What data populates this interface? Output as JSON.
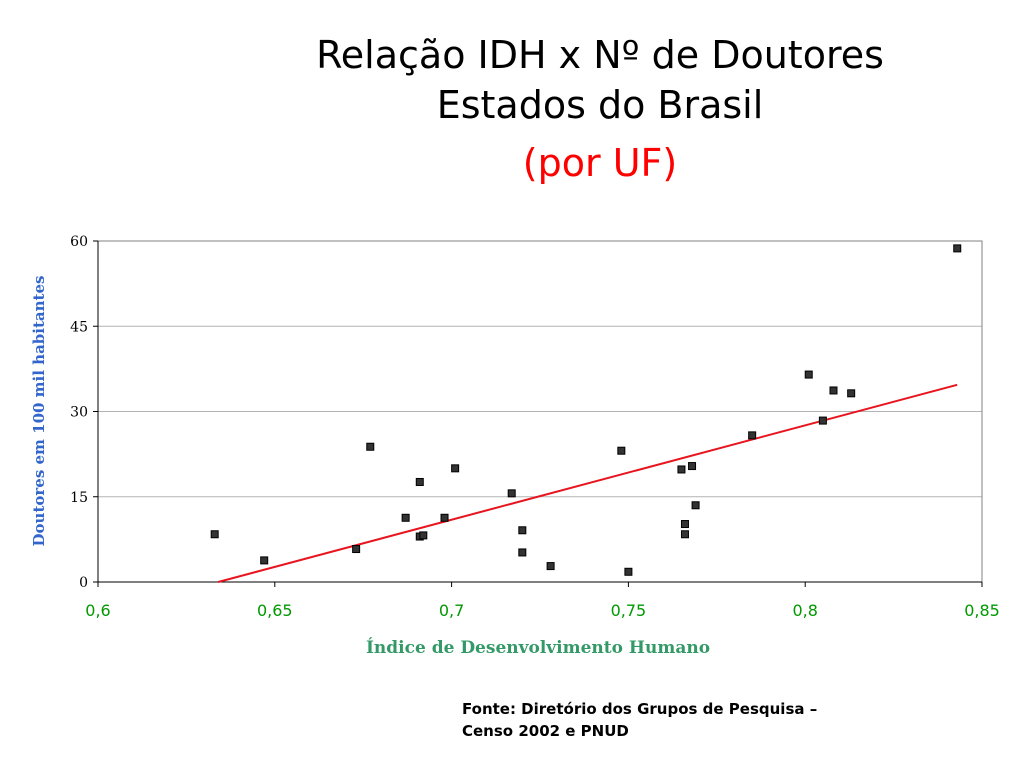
{
  "slide": {
    "title_line1": "Relação IDH x Nº de Doutores",
    "title_line2": "Estados do Brasil",
    "title_line3": "(por UF)",
    "source_line1": "Fonte: Diretório dos Grupos de Pesquisa –",
    "source_line2": "Censo 2002 e PNUD"
  },
  "colors": {
    "title": "#000000",
    "title_accent": "#ff0000",
    "trend_line": "#e8141e",
    "marker": "#333333",
    "ylabel": "#3366cc",
    "xlabel": "#339966",
    "xticks": "#009900",
    "gridline": "#b3b3b3"
  },
  "chart_data": {
    "type": "scatter",
    "title": "",
    "xlabel": "Índice de Desenvolvimento Humano",
    "ylabel": "Doutores em 100 mil habitantes",
    "xlim": [
      0.6,
      0.85
    ],
    "ylim": [
      0,
      60
    ],
    "xticks": [
      0.6,
      0.65,
      0.7,
      0.75,
      0.8,
      0.85
    ],
    "xtick_labels": [
      "0,6",
      "0,65",
      "0,7",
      "0,75",
      "0,8",
      "0,85"
    ],
    "yticks": [
      0,
      15,
      30,
      45,
      60
    ],
    "ytick_labels": [
      "0",
      "15",
      "30",
      "45",
      "60"
    ],
    "grid": "horizontal",
    "legend": "none",
    "points": [
      {
        "x": 0.633,
        "y": 8.4
      },
      {
        "x": 0.647,
        "y": 3.8
      },
      {
        "x": 0.673,
        "y": 5.8
      },
      {
        "x": 0.677,
        "y": 23.8
      },
      {
        "x": 0.687,
        "y": 11.3
      },
      {
        "x": 0.691,
        "y": 17.6
      },
      {
        "x": 0.691,
        "y": 8.0
      },
      {
        "x": 0.692,
        "y": 8.2
      },
      {
        "x": 0.698,
        "y": 11.3
      },
      {
        "x": 0.701,
        "y": 20.0
      },
      {
        "x": 0.717,
        "y": 15.6
      },
      {
        "x": 0.72,
        "y": 9.1
      },
      {
        "x": 0.72,
        "y": 5.2
      },
      {
        "x": 0.728,
        "y": 2.8
      },
      {
        "x": 0.748,
        "y": 23.1
      },
      {
        "x": 0.75,
        "y": 1.8
      },
      {
        "x": 0.765,
        "y": 19.8
      },
      {
        "x": 0.766,
        "y": 10.2
      },
      {
        "x": 0.766,
        "y": 8.4
      },
      {
        "x": 0.768,
        "y": 20.4
      },
      {
        "x": 0.769,
        "y": 13.5
      },
      {
        "x": 0.785,
        "y": 25.8
      },
      {
        "x": 0.801,
        "y": 36.5
      },
      {
        "x": 0.805,
        "y": 28.4
      },
      {
        "x": 0.808,
        "y": 33.7
      },
      {
        "x": 0.813,
        "y": 33.2
      },
      {
        "x": 0.843,
        "y": 58.7
      }
    ],
    "trendline": [
      {
        "x": 0.634,
        "y": 0.0
      },
      {
        "x": 0.843,
        "y": 34.7
      }
    ]
  }
}
